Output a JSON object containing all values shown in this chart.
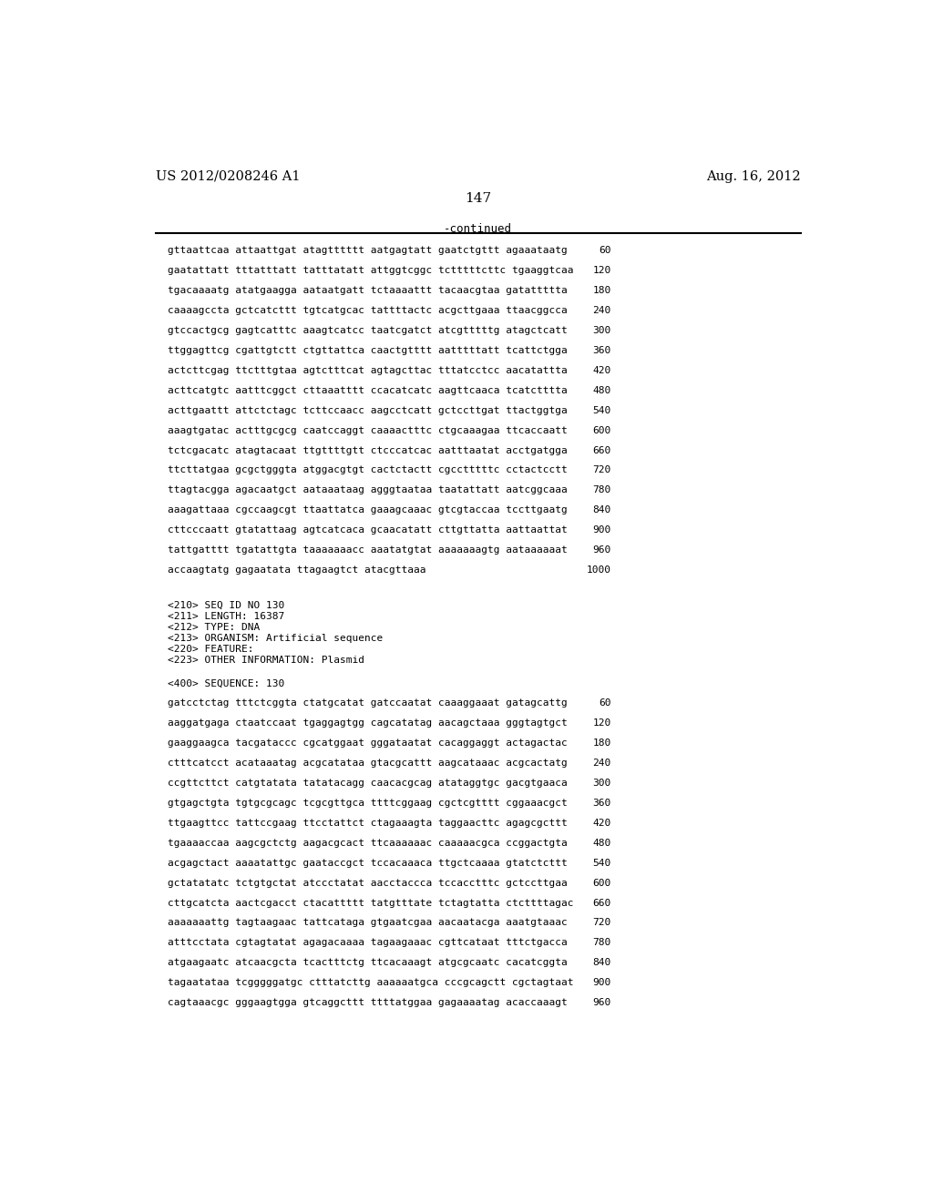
{
  "header_left": "US 2012/0208246 A1",
  "header_right": "Aug. 16, 2012",
  "page_number": "147",
  "continued_label": "-continued",
  "background_color": "#ffffff",
  "text_color": "#000000",
  "sequence_lines_part1": [
    [
      "gttaattcaa attaattgat atagtttttt aatgagtatt gaatctgttt agaaataatg",
      "60"
    ],
    [
      "gaatattatt tttatttatt tatttatatt attggtcggc tctttttcttc tgaaggtcaa",
      "120"
    ],
    [
      "tgacaaaatg atatgaagga aataatgatt tctaaaattt tacaacgtaa gatattttta",
      "180"
    ],
    [
      "caaaagccta gctcatcttt tgtcatgcac tattttactc acgcttgaaa ttaacggcca",
      "240"
    ],
    [
      "gtccactgcg gagtcatttc aaagtcatcc taatcgatct atcgtttttg atagctcatt",
      "300"
    ],
    [
      "ttggagttcg cgattgtctt ctgttattca caactgtttt aatttttatt tcattctgga",
      "360"
    ],
    [
      "actcttcgag ttctttgtaa agtctttcat agtagcttac tttatcctcc aacatattta",
      "420"
    ],
    [
      "acttcatgtc aatttcggct cttaaatttt ccacatcatc aagttcaaca tcatctttta",
      "480"
    ],
    [
      "acttgaattt attctctagc tcttccaacc aagcctcatt gctccttgat ttactggtga",
      "540"
    ],
    [
      "aaagtgatac actttgcgcg caatccaggt caaaactttc ctgcaaagaa ttcaccaatt",
      "600"
    ],
    [
      "tctcgacatc atagtacaat ttgttttgtt ctcccatcac aatttaatat acctgatgga",
      "660"
    ],
    [
      "ttcttatgaa gcgctgggta atggacgtgt cactctactt cgcctttttc cctactcctt",
      "720"
    ],
    [
      "ttagtacgga agacaatgct aataaataag agggtaataa taatattatt aatcggcaaa",
      "780"
    ],
    [
      "aaagattaaa cgccaagcgt ttaattatca gaaagcaaac gtcgtaccaa tccttgaatg",
      "840"
    ],
    [
      "cttcccaatt gtatattaag agtcatcaca gcaacatatt cttgttatta aattaattat",
      "900"
    ],
    [
      "tattgatttt tgatattgta taaaaaaacc aaatatgtat aaaaaaagtg aataaaaaat",
      "960"
    ],
    [
      "accaagtatg gagaatata ttagaagtct atacgttaaa",
      "1000"
    ]
  ],
  "metadata_lines": [
    "<210> SEQ ID NO 130",
    "<211> LENGTH: 16387",
    "<212> TYPE: DNA",
    "<213> ORGANISM: Artificial sequence",
    "<220> FEATURE:",
    "<223> OTHER INFORMATION: Plasmid"
  ],
  "sequence_header2": "<400> SEQUENCE: 130",
  "sequence_lines_part2": [
    [
      "gatcctctag tttctcggta ctatgcatat gatccaatat caaaggaaat gatagcattg",
      "60"
    ],
    [
      "aaggatgaga ctaatccaat tgaggagtgg cagcatatag aacagctaaa gggtagtgct",
      "120"
    ],
    [
      "gaaggaagca tacgataccc cgcatggaat gggataatat cacaggaggt actagactac",
      "180"
    ],
    [
      "ctttcatcct acataaatag acgcatataa gtacgcattt aagcataaac acgcactatg",
      "240"
    ],
    [
      "ccgttcttct catgtatata tatatacagg caacacgcag atataggtgc gacgtgaaca",
      "300"
    ],
    [
      "gtgagctgta tgtgcgcagc tcgcgttgca ttttcggaag cgctcgtttt cggaaacgct",
      "360"
    ],
    [
      "ttgaagttcc tattccgaag ttcctattct ctagaaagta taggaacttc agagcgcttt",
      "420"
    ],
    [
      "tgaaaaccaa aagcgctctg aagacgcact ttcaaaaaac caaaaacgca ccggactgta",
      "480"
    ],
    [
      "acgagctact aaaatattgc gaataccgct tccacaaaca ttgctcaaaa gtatctcttt",
      "540"
    ],
    [
      "gctatatatc tctgtgctat atccctatat aacctaccca tccacctttc gctccttgaa",
      "600"
    ],
    [
      "cttgcatcta aactcgacct ctacattttt tatgtttate tctagtatta ctcttttagac",
      "660"
    ],
    [
      "aaaaaaattg tagtaagaac tattcataga gtgaatcgaa aacaatacga aaatgtaaac",
      "720"
    ],
    [
      "atttcctata cgtagtatat agagacaaaa tagaagaaac cgttcataat tttctgacca",
      "780"
    ],
    [
      "atgaagaatc atcaacgcta tcactttctg ttcacaaagt atgcgcaatc cacatcggta",
      "840"
    ],
    [
      "tagaatataa tcgggggatgc ctttatcttg aaaaaatgca cccgcagctt cgctagtaat",
      "900"
    ],
    [
      "cagtaaacgc gggaagtgga gtcaggcttt ttttatggaa gagaaaatag acaccaaagt",
      "960"
    ]
  ]
}
